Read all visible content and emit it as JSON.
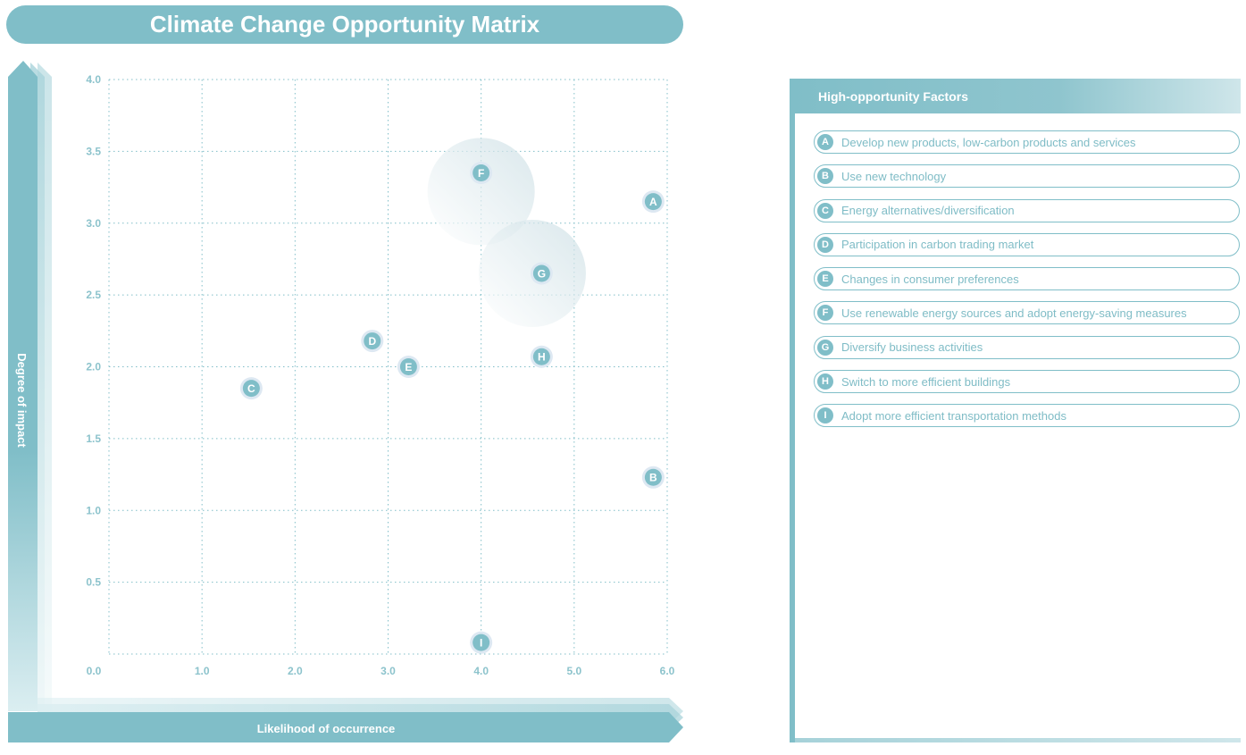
{
  "chart_data": {
    "type": "scatter",
    "title": "Climate Change Opportunity Matrix",
    "xlabel": "Likelihood of occurrence",
    "ylabel": "Degree of impact",
    "xlim": [
      0,
      6
    ],
    "ylim": [
      0,
      4
    ],
    "x_ticks": [
      "0.0",
      "1.0",
      "2.0",
      "3.0",
      "4.0",
      "5.0",
      "6.0"
    ],
    "y_ticks": [
      "0.5",
      "1.0",
      "1.5",
      "2.0",
      "2.5",
      "3.0",
      "3.5",
      "4.0"
    ],
    "grid": true,
    "points": [
      {
        "label": "A",
        "x": 5.85,
        "y": 3.15
      },
      {
        "label": "B",
        "x": 5.85,
        "y": 1.23
      },
      {
        "label": "C",
        "x": 1.53,
        "y": 1.85
      },
      {
        "label": "D",
        "x": 2.83,
        "y": 2.18
      },
      {
        "label": "E",
        "x": 3.22,
        "y": 2.0
      },
      {
        "label": "F",
        "x": 4.0,
        "y": 3.35
      },
      {
        "label": "G",
        "x": 4.65,
        "y": 2.65
      },
      {
        "label": "H",
        "x": 4.65,
        "y": 2.07
      },
      {
        "label": "I",
        "x": 4.0,
        "y": 0.08
      }
    ],
    "highlight_regions": [
      {
        "x": 4.0,
        "y": 3.22
      },
      {
        "x": 4.55,
        "y": 2.65
      }
    ]
  },
  "panel": {
    "title": "High-opportunity Factors",
    "factors": [
      {
        "letter": "A",
        "text": "Develop new products, low-carbon products and services"
      },
      {
        "letter": "B",
        "text": "Use new technology"
      },
      {
        "letter": "C",
        "text": "Energy alternatives/diversification"
      },
      {
        "letter": "D",
        "text": "Participation in carbon trading market"
      },
      {
        "letter": "E",
        "text": "Changes in consumer preferences"
      },
      {
        "letter": "F",
        "text": "Use renewable energy sources and adopt energy-saving measures"
      },
      {
        "letter": "G",
        "text": "Diversify business activities"
      },
      {
        "letter": "H",
        "text": "Switch to more efficient buildings"
      },
      {
        "letter": "I",
        "text": "Adopt more efficient transportation methods"
      }
    ]
  },
  "colors": {
    "accent": "#80bec8",
    "text": "#7fbcc6",
    "grid": "#80bec8",
    "halo": "#dde8f2"
  }
}
